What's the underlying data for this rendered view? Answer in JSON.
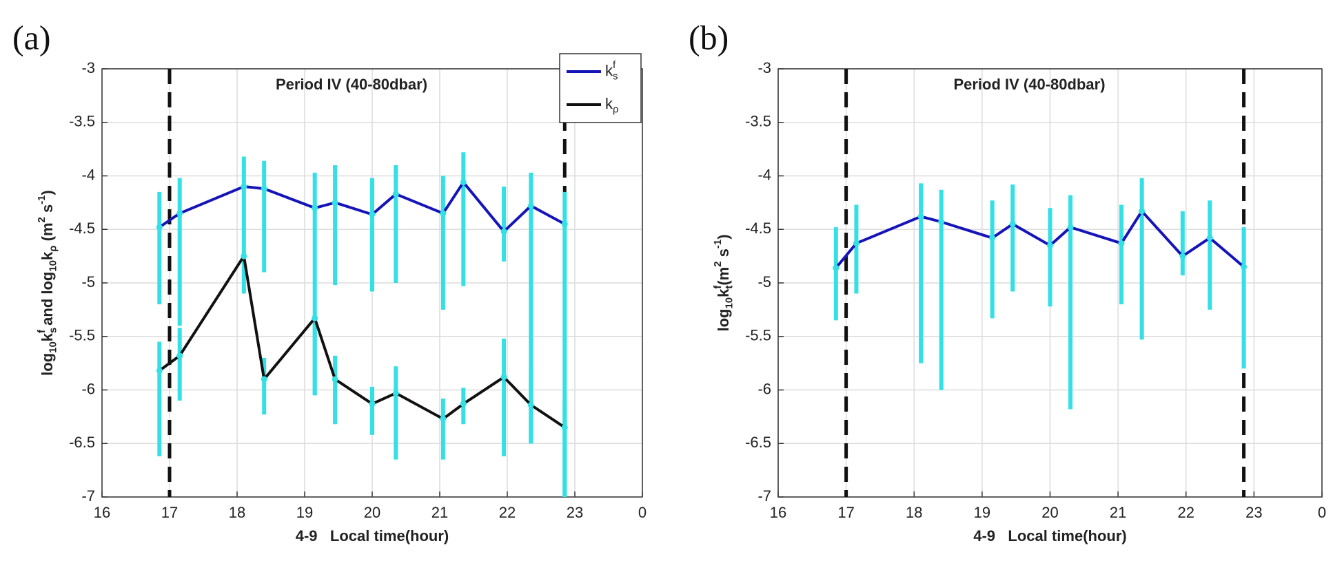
{
  "chart_data": [
    {
      "type": "line",
      "panel_label": "(a)",
      "title": "Period IV (40-80dbar)",
      "xlabel": "4-9   Local time(hour)",
      "ylabel": [
        "log",
        "10",
        "k",
        "s",
        "f",
        " and log",
        "10",
        "k",
        "ρ",
        " (m",
        "2",
        " s",
        "-1",
        ")"
      ],
      "xlim": [
        16,
        24
      ],
      "xticks": [
        16,
        17,
        18,
        19,
        20,
        21,
        22,
        23,
        {
          "value": 24,
          "label": "0"
        }
      ],
      "ylim": [
        -7,
        -3
      ],
      "yticks": [
        -3,
        -3.5,
        -4,
        -4.5,
        -5,
        -5.5,
        -6,
        -6.5,
        -7
      ],
      "grid": true,
      "legend": "upper right",
      "vlines": [
        17,
        22.85
      ],
      "vline_color": "#111111",
      "errorbar_color": "#33e0e6",
      "series": [
        {
          "name": [
            "k",
            "s",
            "f"
          ],
          "color": "#1414b8",
          "x": [
            16.85,
            17.15,
            18.1,
            18.4,
            19.15,
            19.45,
            20.0,
            20.35,
            21.05,
            21.35,
            21.95,
            22.35,
            22.85
          ],
          "values": [
            -4.48,
            -4.35,
            -4.1,
            -4.12,
            -4.3,
            -4.25,
            -4.36,
            -4.17,
            -4.35,
            -4.06,
            -4.52,
            -4.28,
            -4.45
          ],
          "error_high": [
            -4.15,
            -4.02,
            -3.82,
            -3.86,
            -3.97,
            -3.9,
            -4.02,
            -3.9,
            -4.0,
            -3.78,
            -4.1,
            -3.97,
            -4.15
          ],
          "error_low": [
            -5.2,
            -5.4,
            -4.75,
            -4.9,
            -6.05,
            -5.02,
            -5.08,
            -5.0,
            -5.25,
            -5.03,
            -4.8,
            -6.5,
            -7.0
          ]
        },
        {
          "name": [
            "k",
            "ρ"
          ],
          "color": "#111111",
          "x": [
            16.85,
            17.15,
            18.1,
            18.4,
            19.15,
            19.45,
            20.0,
            20.35,
            21.05,
            21.35,
            21.95,
            22.35,
            22.85
          ],
          "values": [
            -5.82,
            -5.68,
            -4.75,
            -5.9,
            -5.33,
            -5.9,
            -6.13,
            -6.03,
            -6.27,
            -6.13,
            -5.88,
            -6.14,
            -6.35
          ],
          "error_high": [
            -5.55,
            -5.42,
            -4.72,
            -5.7,
            -5.3,
            -5.68,
            -5.97,
            -5.78,
            -6.08,
            -5.98,
            -5.52,
            -5.8,
            -6.1
          ],
          "error_low": [
            -6.62,
            -6.1,
            -5.1,
            -6.23,
            -6.05,
            -6.32,
            -6.42,
            -6.65,
            -6.65,
            -6.32,
            -6.62,
            -6.5,
            -7.0
          ]
        }
      ]
    },
    {
      "type": "line",
      "panel_label": "(b)",
      "title": "Period IV (40-80dbar)",
      "xlabel": "4-9   Local time(hour)",
      "ylabel": [
        "log",
        "10",
        "k",
        "t",
        "f",
        "(m",
        "2",
        " s",
        "-1",
        ")"
      ],
      "xlim": [
        16,
        24
      ],
      "xticks": [
        16,
        17,
        18,
        19,
        20,
        21,
        22,
        23,
        {
          "value": 24,
          "label": "0"
        }
      ],
      "ylim": [
        -7,
        -3
      ],
      "yticks": [
        -3,
        -3.5,
        -4,
        -4.5,
        -5,
        -5.5,
        -6,
        -6.5,
        -7
      ],
      "grid": true,
      "vlines": [
        17,
        22.85
      ],
      "vline_color": "#111111",
      "errorbar_color": "#33e0e6",
      "series": [
        {
          "color": "#1414b8",
          "x": [
            16.85,
            17.15,
            18.1,
            18.4,
            19.15,
            19.45,
            20.0,
            20.3,
            21.05,
            21.35,
            21.95,
            22.35,
            22.85
          ],
          "values": [
            -4.86,
            -4.63,
            -4.38,
            -4.43,
            -4.58,
            -4.45,
            -4.65,
            -4.48,
            -4.63,
            -4.33,
            -4.75,
            -4.58,
            -4.85
          ],
          "error_high": [
            -4.48,
            -4.27,
            -4.07,
            -4.13,
            -4.23,
            -4.08,
            -4.3,
            -4.18,
            -4.27,
            -4.02,
            -4.33,
            -4.23,
            -4.48
          ],
          "error_low": [
            -5.35,
            -5.1,
            -5.75,
            -6.0,
            -5.33,
            -5.08,
            -5.22,
            -6.18,
            -5.2,
            -5.53,
            -4.93,
            -5.25,
            -5.8
          ]
        }
      ]
    }
  ]
}
